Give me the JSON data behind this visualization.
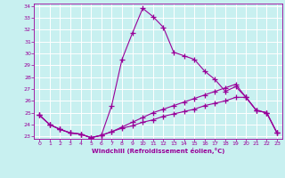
{
  "xlabel": "Windchill (Refroidissement éolien,°C)",
  "bg_color": "#c8f0f0",
  "grid_color": "#ffffff",
  "line_color": "#990099",
  "spine_color": "#990099",
  "xlim": [
    -0.5,
    23.5
  ],
  "ylim": [
    22.8,
    34.2
  ],
  "xticks": [
    0,
    1,
    2,
    3,
    4,
    5,
    6,
    7,
    8,
    9,
    10,
    11,
    12,
    13,
    14,
    15,
    16,
    17,
    18,
    19,
    20,
    21,
    22,
    23
  ],
  "yticks": [
    23,
    24,
    25,
    26,
    27,
    28,
    29,
    30,
    31,
    32,
    33,
    34
  ],
  "line1_x": [
    0,
    1,
    2,
    3,
    4,
    5,
    6,
    7,
    8,
    9,
    10,
    11,
    12,
    13,
    14,
    15,
    16,
    17,
    18,
    19,
    20,
    21,
    22,
    23
  ],
  "line1_y": [
    24.8,
    24.0,
    23.6,
    23.3,
    23.2,
    22.9,
    23.1,
    25.6,
    29.5,
    31.7,
    33.8,
    33.1,
    32.2,
    30.1,
    29.8,
    29.5,
    28.5,
    27.8,
    26.8,
    27.2,
    26.3,
    25.2,
    25.0,
    23.3
  ],
  "line2_x": [
    0,
    1,
    2,
    3,
    4,
    5,
    6,
    7,
    8,
    9,
    10,
    11,
    12,
    13,
    14,
    15,
    16,
    17,
    18,
    19,
    20,
    21,
    22,
    23
  ],
  "line2_y": [
    24.8,
    24.0,
    23.6,
    23.3,
    23.2,
    22.9,
    23.1,
    23.4,
    23.7,
    23.9,
    24.2,
    24.4,
    24.7,
    24.9,
    25.1,
    25.3,
    25.6,
    25.8,
    26.0,
    26.3,
    26.3,
    25.2,
    25.0,
    23.3
  ],
  "line3_x": [
    0,
    1,
    2,
    3,
    4,
    5,
    6,
    7,
    8,
    9,
    10,
    11,
    12,
    13,
    14,
    15,
    16,
    17,
    18,
    19,
    20,
    21,
    22,
    23
  ],
  "line3_y": [
    24.8,
    24.0,
    23.6,
    23.3,
    23.2,
    22.9,
    23.1,
    23.4,
    23.8,
    24.2,
    24.6,
    25.0,
    25.3,
    25.6,
    25.9,
    26.2,
    26.5,
    26.8,
    27.1,
    27.4,
    26.3,
    25.2,
    25.0,
    23.3
  ]
}
